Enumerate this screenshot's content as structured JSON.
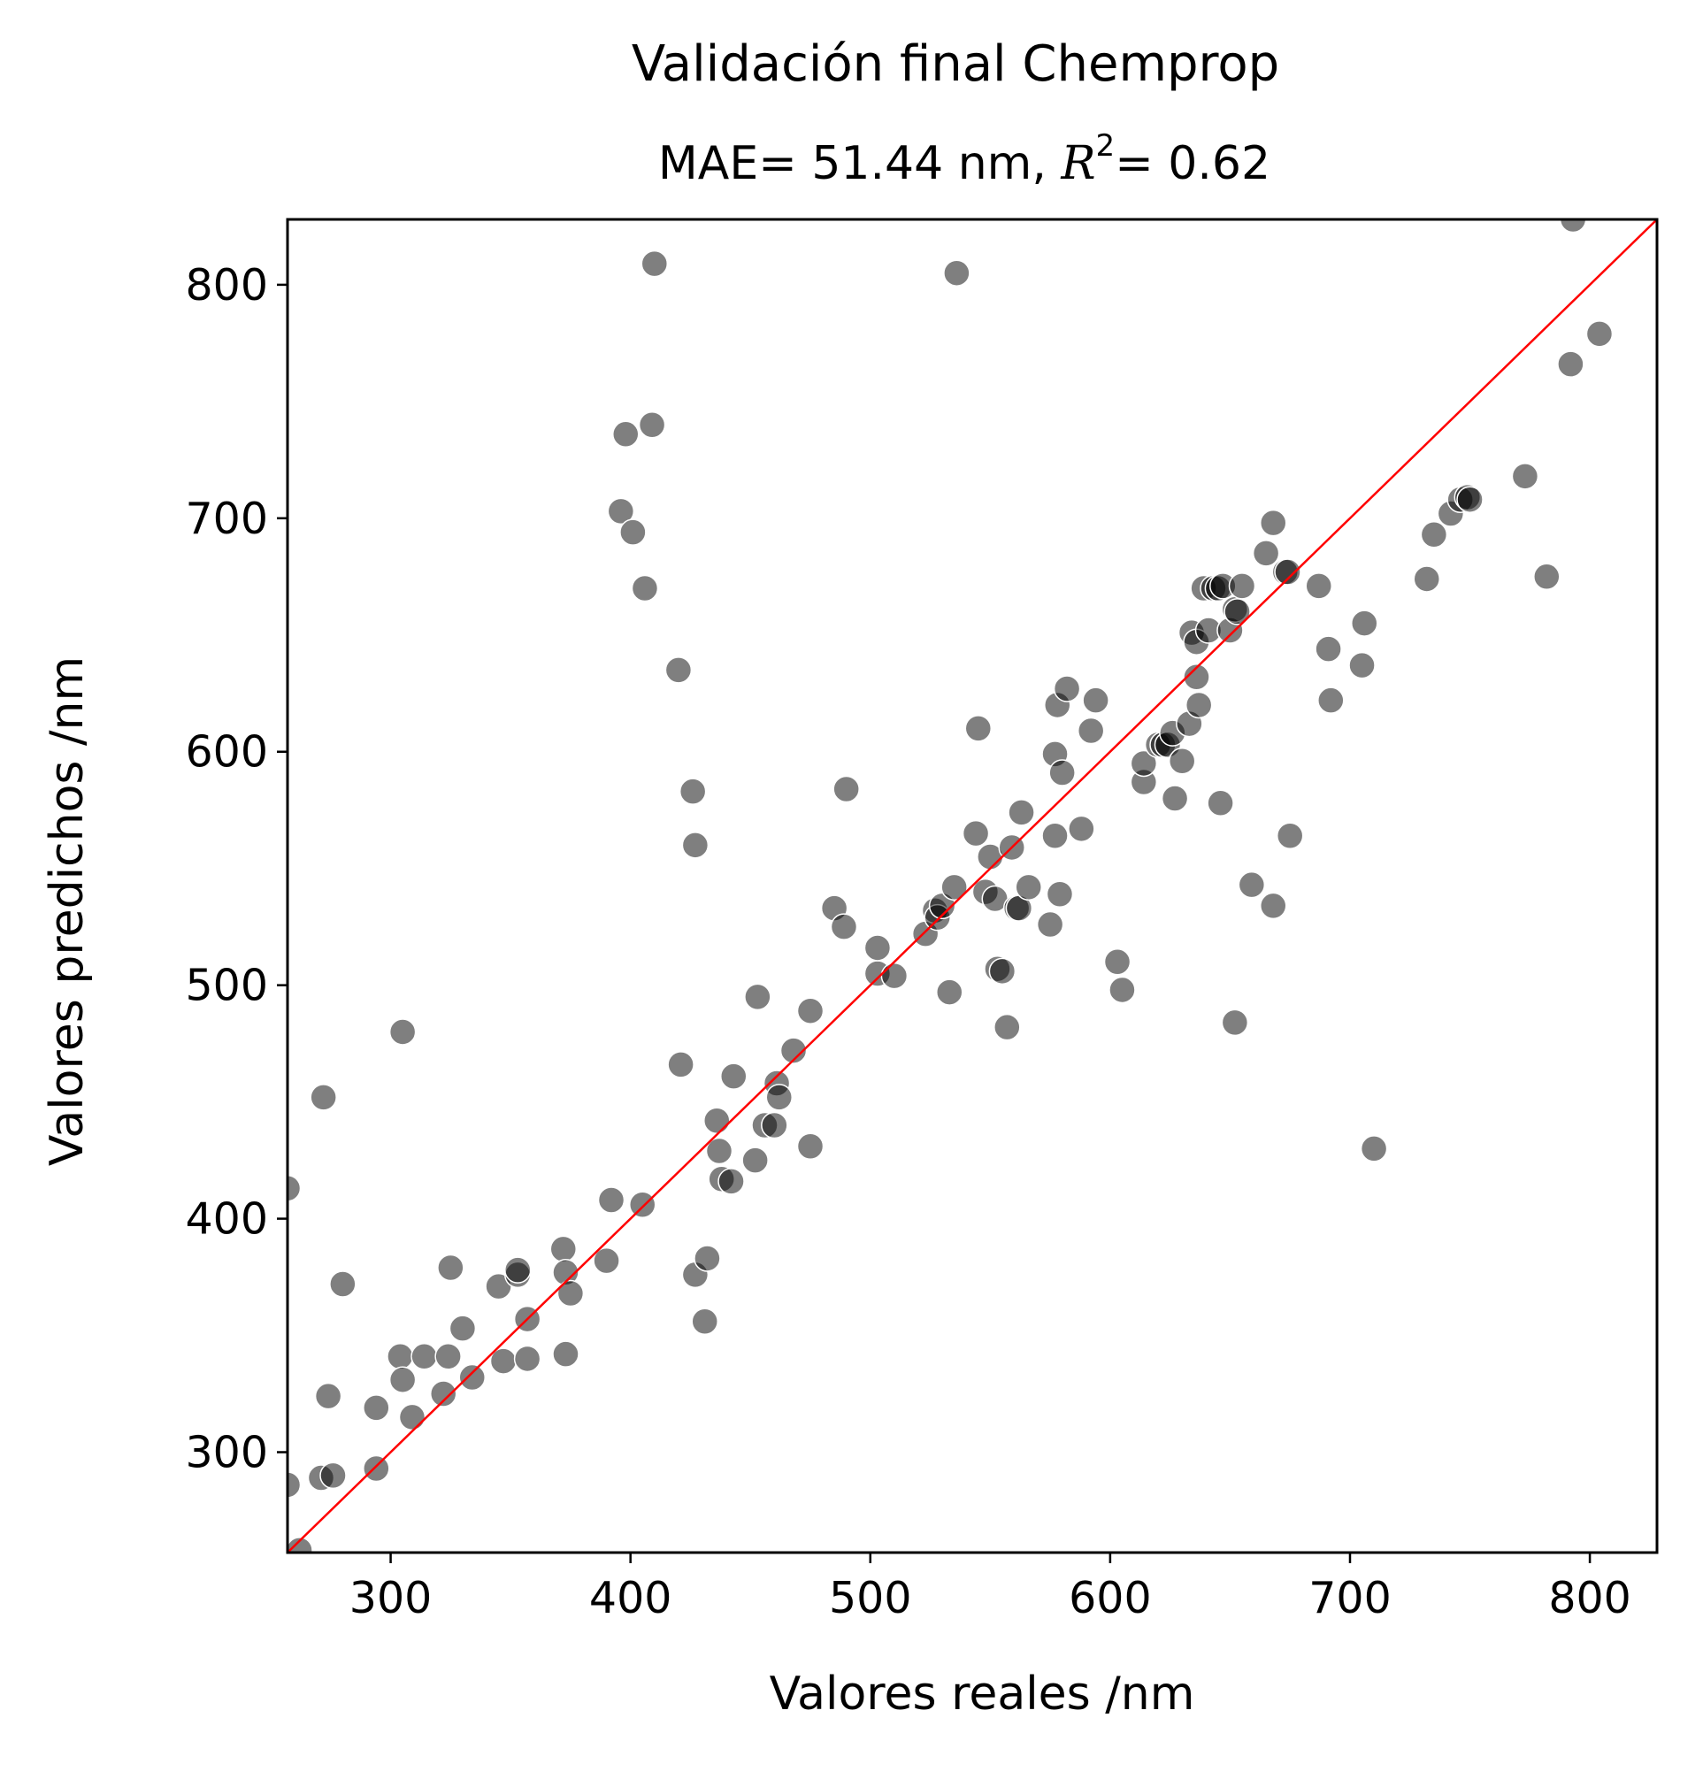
{
  "chart_data": {
    "type": "scatter",
    "title": "Validación final Chemprop",
    "subtitle": {
      "prefix": "MAE= 51.44 nm, ",
      "r2_symbol": "R",
      "r2_exp": "2",
      "suffix": "= 0.62"
    },
    "xlabel": "Valores reales /nm",
    "ylabel": "Valores predichos /nm",
    "xlim": [
      257,
      828
    ],
    "ylim": [
      257,
      828
    ],
    "xticks": [
      300,
      400,
      500,
      600,
      700,
      800
    ],
    "yticks": [
      300,
      400,
      500,
      600,
      700,
      800
    ],
    "grid": false,
    "marker_color": "#000000",
    "marker_opacity": 0.5,
    "reference_line": {
      "type": "identity",
      "color": "#ff0000"
    },
    "points": [
      [
        257,
        286
      ],
      [
        257,
        413
      ],
      [
        262,
        258
      ],
      [
        271,
        289
      ],
      [
        272,
        452
      ],
      [
        274,
        324
      ],
      [
        276,
        290
      ],
      [
        280,
        372
      ],
      [
        294,
        293
      ],
      [
        294,
        319
      ],
      [
        304,
        341
      ],
      [
        305,
        331
      ],
      [
        305,
        480
      ],
      [
        309,
        315
      ],
      [
        314,
        341
      ],
      [
        322,
        325
      ],
      [
        324,
        341
      ],
      [
        325,
        379
      ],
      [
        330,
        353
      ],
      [
        334,
        332
      ],
      [
        345,
        371
      ],
      [
        347,
        339
      ],
      [
        353,
        376
      ],
      [
        353,
        378
      ],
      [
        357,
        357
      ],
      [
        357,
        340
      ],
      [
        372,
        387
      ],
      [
        373,
        377
      ],
      [
        373,
        342
      ],
      [
        375,
        368
      ],
      [
        390,
        382
      ],
      [
        392,
        408
      ],
      [
        396,
        703
      ],
      [
        398,
        736
      ],
      [
        401,
        694
      ],
      [
        405,
        406
      ],
      [
        406,
        670
      ],
      [
        409,
        740
      ],
      [
        410,
        809
      ],
      [
        420,
        635
      ],
      [
        421,
        466
      ],
      [
        426,
        583
      ],
      [
        427,
        560
      ],
      [
        427,
        376
      ],
      [
        431,
        356
      ],
      [
        432,
        383
      ],
      [
        436,
        442
      ],
      [
        437,
        429
      ],
      [
        438,
        417
      ],
      [
        442,
        416
      ],
      [
        443,
        461
      ],
      [
        452,
        425
      ],
      [
        453,
        495
      ],
      [
        456,
        440
      ],
      [
        461,
        458
      ],
      [
        460,
        440
      ],
      [
        462,
        452
      ],
      [
        468,
        472
      ],
      [
        475,
        489
      ],
      [
        475,
        431
      ],
      [
        485,
        533
      ],
      [
        489,
        525
      ],
      [
        490,
        584
      ],
      [
        503,
        505
      ],
      [
        503,
        516
      ],
      [
        510,
        504
      ],
      [
        523,
        522
      ],
      [
        527,
        532
      ],
      [
        528,
        529
      ],
      [
        530,
        534
      ],
      [
        533,
        497
      ],
      [
        535,
        542
      ],
      [
        536,
        805
      ],
      [
        544,
        565
      ],
      [
        545,
        610
      ],
      [
        548,
        540
      ],
      [
        550,
        555
      ],
      [
        552,
        537
      ],
      [
        553,
        507
      ],
      [
        555,
        506
      ],
      [
        557,
        482
      ],
      [
        559,
        559
      ],
      [
        561,
        533
      ],
      [
        562,
        533
      ],
      [
        563,
        574
      ],
      [
        566,
        542
      ],
      [
        575,
        526
      ],
      [
        577,
        564
      ],
      [
        577,
        599
      ],
      [
        578,
        620
      ],
      [
        579,
        539
      ],
      [
        580,
        591
      ],
      [
        582,
        627
      ],
      [
        588,
        567
      ],
      [
        592,
        609
      ],
      [
        594,
        622
      ],
      [
        603,
        510
      ],
      [
        605,
        498
      ],
      [
        614,
        587
      ],
      [
        614,
        595
      ],
      [
        620,
        603
      ],
      [
        622,
        603
      ],
      [
        624,
        603
      ],
      [
        626,
        608
      ],
      [
        627,
        580
      ],
      [
        630,
        596
      ],
      [
        633,
        612
      ],
      [
        634,
        651
      ],
      [
        636,
        647
      ],
      [
        636,
        632
      ],
      [
        637,
        620
      ],
      [
        639,
        670
      ],
      [
        641,
        652
      ],
      [
        643,
        670
      ],
      [
        645,
        670
      ],
      [
        646,
        578
      ],
      [
        647,
        671
      ],
      [
        650,
        652
      ],
      [
        652,
        484
      ],
      [
        652,
        661
      ],
      [
        653,
        660
      ],
      [
        655,
        671
      ],
      [
        659,
        543
      ],
      [
        665,
        685
      ],
      [
        668,
        534
      ],
      [
        668,
        698
      ],
      [
        673,
        677
      ],
      [
        674,
        677
      ],
      [
        675,
        564
      ],
      [
        687,
        671
      ],
      [
        691,
        644
      ],
      [
        692,
        622
      ],
      [
        705,
        637
      ],
      [
        706,
        655
      ],
      [
        710,
        430
      ],
      [
        732,
        674
      ],
      [
        735,
        693
      ],
      [
        742,
        702
      ],
      [
        746,
        708
      ],
      [
        749,
        709
      ],
      [
        750,
        708
      ],
      [
        773,
        718
      ],
      [
        782,
        675
      ],
      [
        792,
        766
      ],
      [
        793,
        828
      ],
      [
        804,
        779
      ]
    ]
  }
}
